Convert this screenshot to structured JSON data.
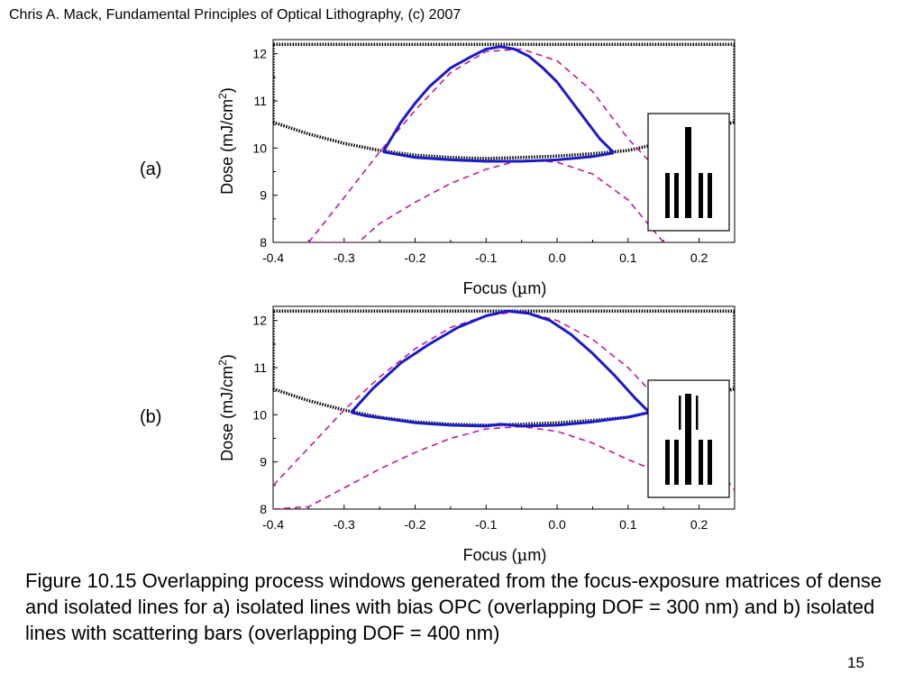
{
  "header": {
    "text": "Chris A. Mack, Fundamental Principles of Optical Lithography, (c) 2007"
  },
  "caption": {
    "text": "Figure 10.15  Overlapping process windows generated from the focus-exposure matrices of dense and isolated lines for a) isolated lines with bias OPC (overlapping DOF = 300 nm) and b) isolated lines with scattering bars (overlapping DOF = 400 nm)"
  },
  "page_number": "15",
  "colors": {
    "window": "#1a1acc",
    "dashed": "#c0189c",
    "dotted": "#000000"
  },
  "chart_data": [
    {
      "type": "line",
      "panel_label": "(a)",
      "xlabel_main": "Focus (",
      "xlabel_mu": "µ",
      "xlabel_tail": "m)",
      "ylabel_main": "Dose (mJ/cm",
      "ylabel_sup": "2",
      "ylabel_tail": ")",
      "xlim": [
        -0.4,
        0.25
      ],
      "ylim": [
        8,
        12.3
      ],
      "xticks": [
        "-0.4",
        "-0.3",
        "-0.2",
        "-0.1",
        "0.0",
        "0.1",
        "0.2"
      ],
      "yticks": [
        "8",
        "9",
        "10",
        "11",
        "12"
      ],
      "inset": "isolated-line-with-bias",
      "series": [
        {
          "style": "dotted",
          "x": [
            -0.4,
            -0.35,
            -0.3,
            -0.25,
            -0.2,
            -0.15,
            -0.1,
            -0.05,
            0.0,
            0.05,
            0.1,
            0.13,
            0.16,
            0.2,
            0.25
          ],
          "y": [
            10.55,
            10.3,
            10.1,
            9.95,
            9.85,
            9.8,
            9.78,
            9.8,
            9.83,
            9.88,
            9.95,
            10.05,
            10.2,
            10.38,
            10.55
          ]
        },
        {
          "style": "dotted",
          "x": [
            -0.4,
            -0.4,
            0.25,
            0.25
          ],
          "y": [
            10.55,
            12.2,
            12.2,
            10.55
          ]
        },
        {
          "style": "dashed",
          "x": [
            -0.35,
            -0.3,
            -0.25,
            -0.2,
            -0.15,
            -0.1,
            -0.05,
            0.0,
            0.05,
            0.1,
            0.15,
            0.18
          ],
          "y": [
            8.0,
            8.95,
            9.92,
            10.8,
            11.6,
            12.05,
            12.1,
            11.85,
            11.2,
            10.2,
            9.4,
            8.9
          ]
        },
        {
          "style": "dashed",
          "x": [
            -0.35,
            -0.28,
            -0.25,
            -0.2,
            -0.15,
            -0.1,
            -0.05,
            0.0,
            0.05,
            0.1,
            0.15
          ],
          "y": [
            8.0,
            8.0,
            8.4,
            8.85,
            9.25,
            9.55,
            9.75,
            9.7,
            9.45,
            8.9,
            8.0
          ]
        },
        {
          "style": "solid",
          "x": [
            -0.245,
            -0.22,
            -0.2,
            -0.18,
            -0.15,
            -0.12,
            -0.1,
            -0.08,
            -0.06,
            -0.04,
            -0.02,
            0.0,
            0.02,
            0.04,
            0.06,
            0.08
          ],
          "y": [
            9.92,
            10.55,
            10.95,
            11.3,
            11.7,
            11.95,
            12.1,
            12.15,
            12.1,
            11.95,
            11.7,
            11.4,
            11.0,
            10.6,
            10.2,
            9.9
          ]
        },
        {
          "style": "solid",
          "x": [
            -0.245,
            -0.2,
            -0.15,
            -0.1,
            -0.05,
            0.0,
            0.05,
            0.08
          ],
          "y": [
            9.92,
            9.8,
            9.75,
            9.72,
            9.72,
            9.75,
            9.82,
            9.9
          ]
        }
      ]
    },
    {
      "type": "line",
      "panel_label": "(b)",
      "xlabel_main": "Focus (",
      "xlabel_mu": "µ",
      "xlabel_tail": "m)",
      "ylabel_main": "Dose (mJ/cm",
      "ylabel_sup": "2",
      "ylabel_tail": ")",
      "xlim": [
        -0.4,
        0.25
      ],
      "ylim": [
        8,
        12.3
      ],
      "xticks": [
        "-0.4",
        "-0.3",
        "-0.2",
        "-0.1",
        "0.0",
        "0.1",
        "0.2"
      ],
      "yticks": [
        "8",
        "9",
        "10",
        "11",
        "12"
      ],
      "inset": "isolated-line-with-scattering-bars",
      "series": [
        {
          "style": "dotted",
          "x": [
            -0.4,
            -0.35,
            -0.3,
            -0.25,
            -0.2,
            -0.15,
            -0.1,
            -0.05,
            0.0,
            0.05,
            0.1,
            0.13,
            0.16,
            0.2,
            0.25
          ],
          "y": [
            10.55,
            10.3,
            10.1,
            9.95,
            9.85,
            9.8,
            9.78,
            9.8,
            9.83,
            9.88,
            9.95,
            10.05,
            10.2,
            10.38,
            10.55
          ]
        },
        {
          "style": "dotted",
          "x": [
            -0.4,
            -0.4,
            0.25,
            0.25
          ],
          "y": [
            10.55,
            12.2,
            12.2,
            10.55
          ]
        },
        {
          "style": "dashed",
          "x": [
            -0.4,
            -0.35,
            -0.3,
            -0.25,
            -0.2,
            -0.15,
            -0.1,
            -0.05,
            0.0,
            0.05,
            0.1,
            0.15,
            0.2,
            0.25
          ],
          "y": [
            8.5,
            9.3,
            10.1,
            10.8,
            11.4,
            11.85,
            12.1,
            12.2,
            12.0,
            11.6,
            11.0,
            10.2,
            9.4,
            8.4
          ]
        },
        {
          "style": "dashed",
          "x": [
            -0.4,
            -0.35,
            -0.3,
            -0.25,
            -0.2,
            -0.15,
            -0.1,
            -0.05,
            0.0,
            0.05,
            0.1,
            0.15,
            0.2
          ],
          "y": [
            8.0,
            8.05,
            8.45,
            8.85,
            9.2,
            9.5,
            9.7,
            9.75,
            9.65,
            9.4,
            9.05,
            8.75,
            8.6
          ]
        },
        {
          "style": "solid",
          "x": [
            -0.29,
            -0.26,
            -0.22,
            -0.18,
            -0.14,
            -0.1,
            -0.07,
            -0.04,
            -0.01,
            0.02,
            0.05,
            0.08,
            0.11,
            0.13
          ],
          "y": [
            10.05,
            10.55,
            11.1,
            11.5,
            11.85,
            12.1,
            12.2,
            12.15,
            12.0,
            11.7,
            11.3,
            10.85,
            10.35,
            10.05
          ]
        },
        {
          "style": "solid",
          "x": [
            -0.29,
            -0.27,
            -0.2,
            -0.15,
            -0.1,
            -0.08,
            -0.05,
            0.0,
            0.05,
            0.1,
            0.13
          ],
          "y": [
            10.05,
            9.98,
            9.83,
            9.78,
            9.76,
            9.8,
            9.76,
            9.78,
            9.85,
            9.95,
            10.05
          ]
        }
      ]
    }
  ]
}
